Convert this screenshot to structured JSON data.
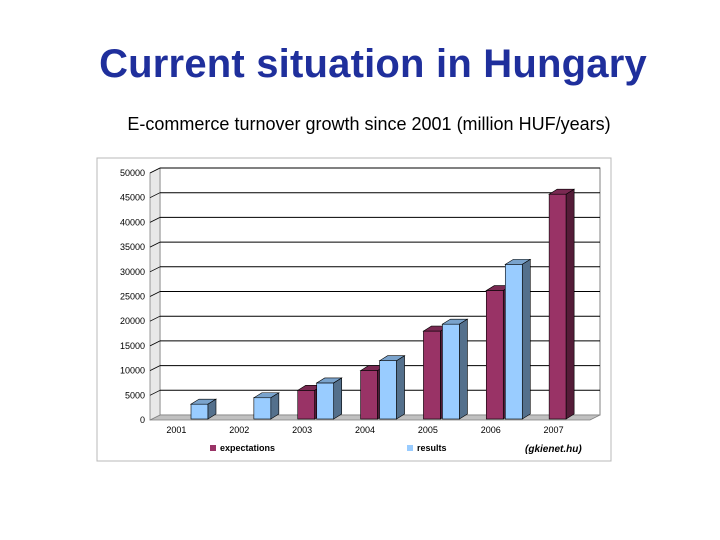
{
  "slide": {
    "title": "Current situation in Hungary",
    "subtitle": "E-commerce turnover growth since 2001 (million HUF/years)"
  },
  "chart_data": {
    "type": "bar",
    "title": "",
    "xlabel": "",
    "ylabel": "",
    "categories": [
      "2001",
      "2002",
      "2003",
      "2004",
      "2005",
      "2006",
      "2007"
    ],
    "series": [
      {
        "name": "expectations",
        "color": "#993366",
        "values": [
          null,
          null,
          5800,
          9800,
          17800,
          26000,
          45500
        ]
      },
      {
        "name": "results",
        "color": "#99ccff",
        "values": [
          3000,
          4300,
          7300,
          11800,
          19200,
          31300,
          null
        ]
      }
    ],
    "y_ticks": [
      "0",
      "5000",
      "10000",
      "15000",
      "20000",
      "25000",
      "30000",
      "35000",
      "40000",
      "45000",
      "50000"
    ],
    "ylim": [
      0,
      50000
    ],
    "grid": true,
    "legend": "bottom",
    "source_note": "(gkienet.hu)"
  }
}
